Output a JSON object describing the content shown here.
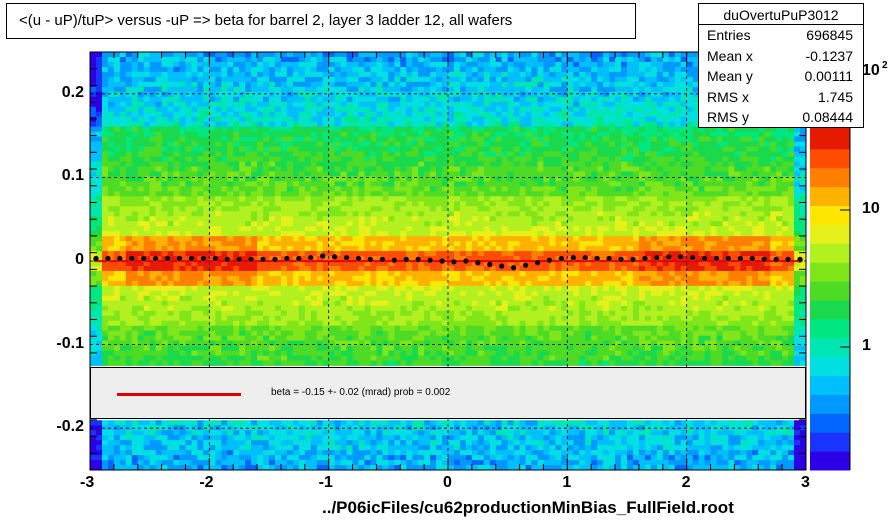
{
  "chart_data": {
    "type": "heatmap",
    "title": "<(u - uP)/tuP> versus  -uP => beta for barrel 2, layer 3 ladder 12, all wafers",
    "xlim": [
      -3,
      3
    ],
    "ylim": [
      -0.25,
      0.25
    ],
    "x_ticks": [
      "-3",
      "-2",
      "-1",
      "0",
      "1",
      "2",
      "3"
    ],
    "y_ticks": [
      "0.2",
      "0.1",
      "0",
      "-0.1",
      "-0.2"
    ],
    "colorbar_ticks": [
      "1",
      "10",
      "10"
    ],
    "colorbar_exponent": "2",
    "grid": true,
    "profile_x": [
      -2.95,
      -2.85,
      -2.75,
      -2.65,
      -2.55,
      -2.45,
      -2.35,
      -2.25,
      -2.15,
      -2.05,
      -1.95,
      -1.85,
      -1.75,
      -1.65,
      -1.55,
      -1.45,
      -1.35,
      -1.25,
      -1.15,
      -1.05,
      -0.95,
      -0.85,
      -0.75,
      -0.65,
      -0.55,
      -0.45,
      -0.35,
      -0.25,
      -0.15,
      -0.05,
      0.05,
      0.15,
      0.25,
      0.35,
      0.45,
      0.55,
      0.65,
      0.75,
      0.85,
      0.95,
      1.05,
      1.15,
      1.25,
      1.35,
      1.45,
      1.55,
      1.65,
      1.75,
      1.85,
      1.95,
      2.05,
      2.15,
      2.25,
      2.35,
      2.45,
      2.55,
      2.65,
      2.75,
      2.85,
      2.95
    ],
    "profile_y": [
      0.003,
      0.003,
      0.003,
      0.003,
      0.003,
      0.003,
      0.003,
      0.003,
      0.003,
      0.003,
      0.003,
      0.002,
      0.002,
      0.002,
      0.002,
      0.002,
      0.003,
      0.003,
      0.004,
      0.006,
      0.005,
      0.004,
      0.003,
      0.002,
      0.002,
      0.001,
      0.002,
      0.002,
      0.001,
      0.0,
      -0.001,
      0.0,
      -0.002,
      -0.004,
      -0.006,
      -0.008,
      -0.005,
      -0.002,
      0.001,
      0.003,
      0.004,
      0.004,
      0.003,
      0.003,
      0.002,
      0.002,
      0.003,
      0.004,
      0.005,
      0.005,
      0.004,
      0.003,
      0.003,
      0.003,
      0.003,
      0.003,
      0.002,
      0.002,
      0.002,
      0.002
    ],
    "fit_text": "beta =   -0.15 +-  0.02 (mrad) prob = 0.002"
  },
  "stats": {
    "name": "duOvertuPuP3012",
    "rows": [
      {
        "label": "Entries",
        "value": "696845"
      },
      {
        "label": "Mean x",
        "value": "-0.1237"
      },
      {
        "label": "Mean y",
        "value": "0.00111"
      },
      {
        "label": "RMS x",
        "value": "1.745"
      },
      {
        "label": "RMS y",
        "value": "0.08444"
      }
    ]
  },
  "footer": "../P06icFiles/cu62productionMinBias_FullField.root"
}
